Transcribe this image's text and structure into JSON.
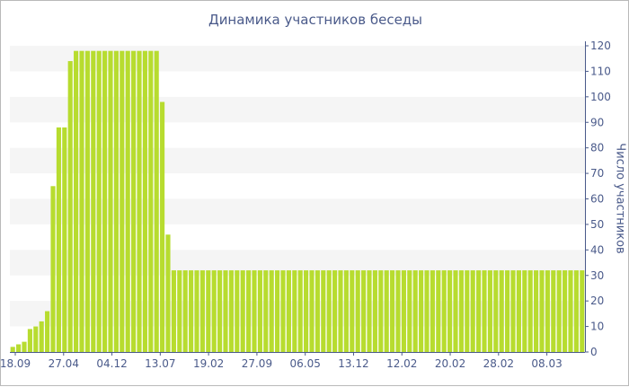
{
  "chart_data": {
    "type": "bar",
    "title": "Динамика участников беседы",
    "xlabel": "",
    "ylabel": "Число участников",
    "ylim": [
      0,
      120
    ],
    "y_ticks": [
      0,
      10,
      20,
      30,
      40,
      50,
      60,
      70,
      80,
      90,
      100,
      110,
      120
    ],
    "x_tick_labels": [
      "18.09",
      "27.04",
      "04.12",
      "13.07",
      "19.02",
      "27.09",
      "06.05",
      "13.12",
      "12.02",
      "20.02",
      "28.02",
      "08.03"
    ],
    "grid": "horizontal bands",
    "y_axis_position": "right",
    "colors": {
      "bar": "#b7dc2f",
      "band": "#f5f5f5",
      "axis": "#4a5a8a",
      "border": "#b9b9b9"
    },
    "series": [
      {
        "values": [
          2,
          3,
          4,
          9,
          10,
          12,
          16,
          65,
          88,
          88,
          114,
          118,
          118,
          118,
          118,
          118,
          118,
          118,
          118,
          118,
          118,
          118,
          118,
          118,
          118,
          118,
          98,
          46,
          32,
          32,
          32,
          32,
          32,
          32,
          32,
          32,
          32,
          32,
          32,
          32,
          32,
          32,
          32,
          32,
          32,
          32,
          32,
          32,
          32,
          32,
          32,
          32,
          32,
          32,
          32,
          32,
          32,
          32,
          32,
          32,
          32,
          32,
          32,
          32,
          32,
          32,
          32,
          32,
          32,
          32,
          32,
          32,
          32,
          32,
          32,
          32,
          32,
          32,
          32,
          32,
          32,
          32,
          32,
          32,
          32,
          32,
          32,
          32,
          32,
          32,
          32,
          32,
          32,
          32,
          32,
          32,
          32,
          32,
          32,
          32
        ]
      }
    ]
  }
}
